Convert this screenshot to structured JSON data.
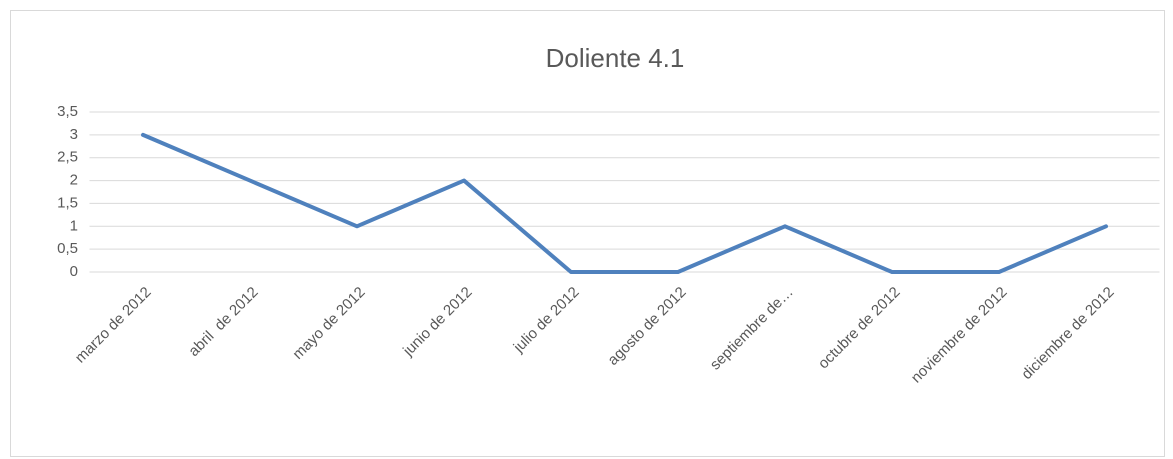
{
  "chart_data": {
    "type": "line",
    "title": "Doliente 4.1",
    "categories": [
      "marzo de 2012",
      "abril  de 2012",
      "mayo de 2012",
      "junio de 2012",
      "julio de 2012",
      "agosto de 2012",
      "septiembre de…",
      "octubre de 2012",
      "noviembre de 2012",
      "diciembre de 2012"
    ],
    "series": [
      {
        "name": "Doliente 4.1",
        "color": "#4f81bd",
        "values": [
          3,
          2,
          1,
          2,
          0,
          0,
          1,
          0,
          0,
          1
        ]
      }
    ],
    "ylim": [
      0,
      3.5
    ],
    "yticks": [
      0,
      {
        "value": 0.5,
        "label": "0,5"
      },
      1,
      {
        "value": 1.5,
        "label": "1,5"
      },
      2,
      {
        "value": 2.5,
        "label": "2,5"
      },
      3,
      {
        "value": 3.5,
        "label": "3,5"
      }
    ],
    "grid": true
  }
}
